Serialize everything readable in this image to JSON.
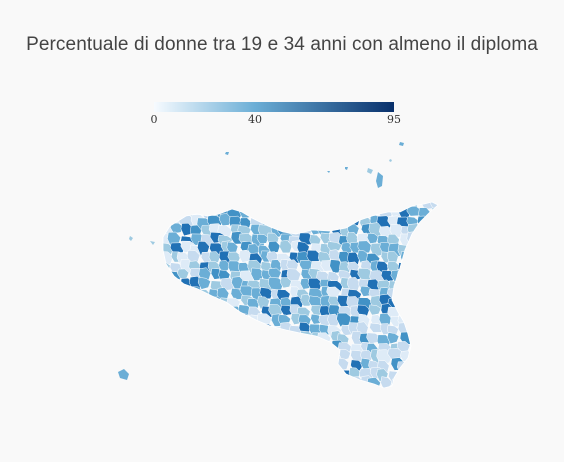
{
  "title": "Percentuale di donne tra 19 e 34 anni con almeno il diploma",
  "legend": {
    "min_label": "0",
    "mid_label": "40",
    "max_label": "95",
    "min": 0,
    "mid": 40,
    "max": 95,
    "colors": {
      "low": "#f7fbff",
      "mid": "#6baed6",
      "high": "#08306b"
    }
  },
  "map": {
    "region": "Sicilia",
    "unit": "comuni",
    "border_color": "#ffffff"
  }
}
